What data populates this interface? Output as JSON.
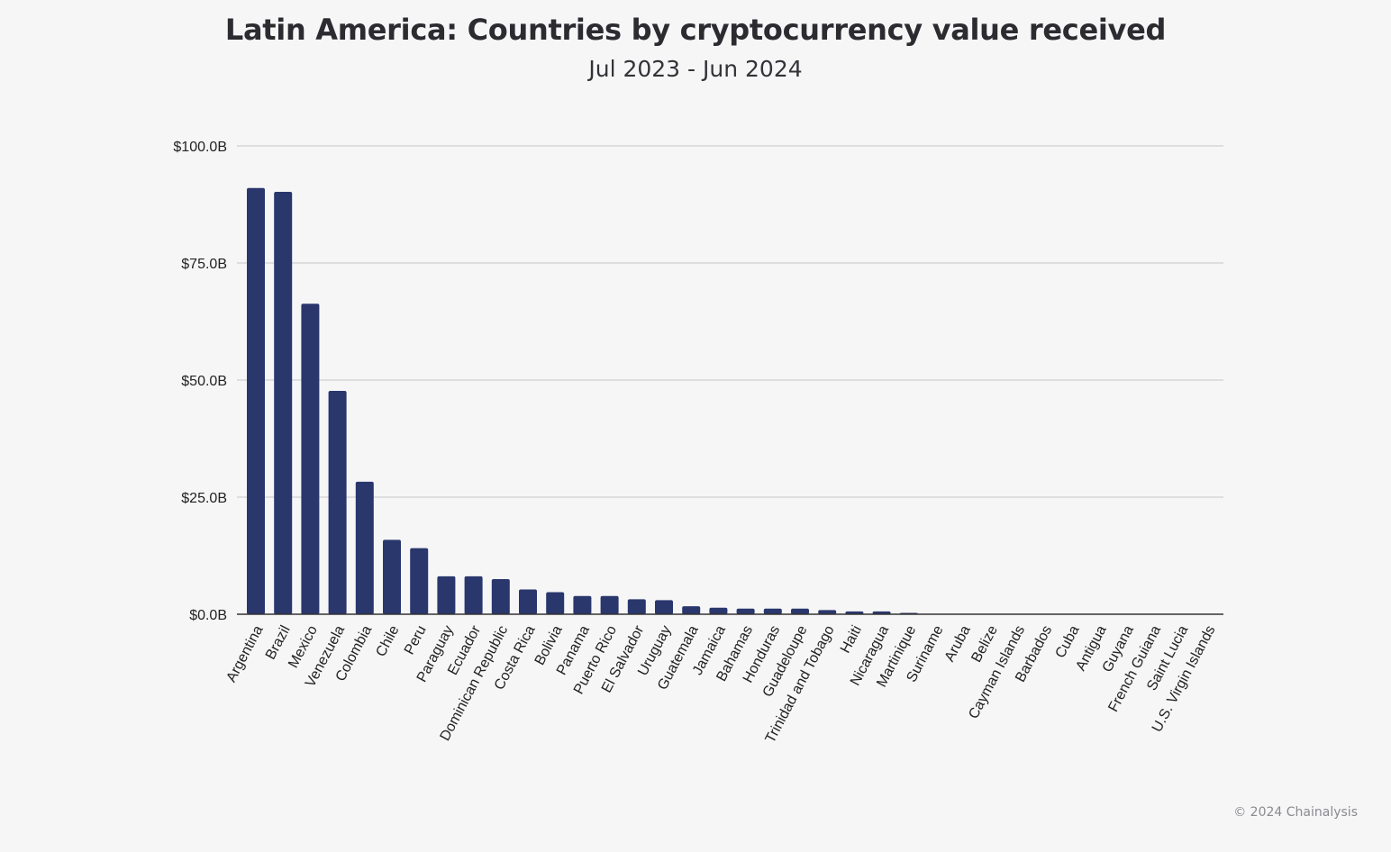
{
  "chart_data": {
    "type": "bar",
    "title": "Latin America: Countries by cryptocurrency value received",
    "subtitle": "Jul 2023 - Jun 2024",
    "xlabel": "",
    "ylabel": "",
    "ylim": [
      0,
      100
    ],
    "y_ticks": [
      {
        "value": 0,
        "label": "$0.0B"
      },
      {
        "value": 25,
        "label": "$25.0B"
      },
      {
        "value": 50,
        "label": "$50.0B"
      },
      {
        "value": 75,
        "label": "$75.0B"
      },
      {
        "value": 100,
        "label": "$100.0B"
      }
    ],
    "grid": true,
    "bar_color": "#2a376d",
    "categories": [
      "Argentina",
      "Brazil",
      "Mexico",
      "Venezuela",
      "Colombia",
      "Chile",
      "Peru",
      "Paraguay",
      "Ecuador",
      "Dominican Republic",
      "Costa Rica",
      "Bolivia",
      "Panama",
      "Puerto Rico",
      "El Salvador",
      "Uruguay",
      "Guatemala",
      "Jamaica",
      "Bahamas",
      "Honduras",
      "Guadeloupe",
      "Trinidad and Tobago",
      "Haiti",
      "Nicaragua",
      "Martinique",
      "Suriname",
      "Aruba",
      "Belize",
      "Cayman Islands",
      "Barbados",
      "Cuba",
      "Antigua",
      "Guyana",
      "French Guiana",
      "Saint Lucia",
      "U.S. Virgin Islands"
    ],
    "values": [
      91.0,
      90.2,
      66.3,
      47.7,
      28.3,
      15.9,
      14.1,
      8.1,
      8.1,
      7.5,
      5.3,
      4.7,
      3.9,
      3.9,
      3.2,
      3.0,
      1.7,
      1.4,
      1.2,
      1.2,
      1.2,
      0.9,
      0.6,
      0.6,
      0.3,
      0.1,
      0.05,
      0.05,
      0.04,
      0.03,
      0.03,
      0.02,
      0.02,
      0.01,
      0.01,
      0.01
    ]
  },
  "footer": {
    "copyright": "© 2024 Chainalysis"
  }
}
